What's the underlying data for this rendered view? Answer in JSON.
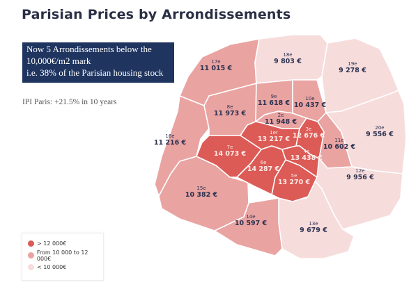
{
  "title": "Parisian Prices by Arrondissements",
  "callout": {
    "line1": "Now 5 Arrondissements below the",
    "line2": "10,000€/m2 mark",
    "line3": "i.e. 38% of the Parisian housing stock"
  },
  "ipi": "IPI Paris: +21.5% in 10 years",
  "colors": {
    "high": "#dc5b56",
    "mid": "#e9a3a1",
    "low": "#f7dcdc",
    "text_dark": "#2c3250",
    "text_light": "#ffe9e6"
  },
  "legend": [
    {
      "label": "> 12 000€",
      "category": "high"
    },
    {
      "label": "From 10 000 to 12 000€",
      "category": "mid"
    },
    {
      "label": "< 10 000€",
      "category": "low"
    }
  ],
  "arrondissements": {
    "a1": {
      "num": "1er",
      "price": "13 217 €",
      "category": "high"
    },
    "a2": {
      "num": "2e",
      "price": "11 948 €",
      "category": "mid"
    },
    "a3": {
      "num": "3e",
      "price": "12 676 €",
      "category": "high"
    },
    "a4": {
      "num": "4e",
      "price": "13 438 €",
      "category": "high"
    },
    "a5": {
      "num": "5e",
      "price": "13 270 €",
      "category": "high"
    },
    "a6": {
      "num": "6e",
      "price": "14 287 €",
      "category": "high"
    },
    "a7": {
      "num": "7e",
      "price": "14 073 €",
      "category": "high"
    },
    "a8": {
      "num": "8e",
      "price": "11 973 €",
      "category": "mid"
    },
    "a9": {
      "num": "9e",
      "price": "11 618 €",
      "category": "mid"
    },
    "a10": {
      "num": "10e",
      "price": "10 437 €",
      "category": "mid"
    },
    "a11": {
      "num": "11e",
      "price": "10 602 €",
      "category": "mid"
    },
    "a12": {
      "num": "12e",
      "price": "9 956 €",
      "category": "low"
    },
    "a13": {
      "num": "13e",
      "price": "9 679 €",
      "category": "low"
    },
    "a14": {
      "num": "14e",
      "price": "10 597 €",
      "category": "mid"
    },
    "a15": {
      "num": "15e",
      "price": "10 382 €",
      "category": "mid"
    },
    "a16": {
      "num": "16e",
      "price": "11 216 €",
      "category": "mid"
    },
    "a17": {
      "num": "17e",
      "price": "11 015 €",
      "category": "mid"
    },
    "a18": {
      "num": "18e",
      "price": "9 803 €",
      "category": "low"
    },
    "a19": {
      "num": "19e",
      "price": "9 278 €",
      "category": "low"
    },
    "a20": {
      "num": "20e",
      "price": "9 556 €",
      "category": "low"
    }
  }
}
